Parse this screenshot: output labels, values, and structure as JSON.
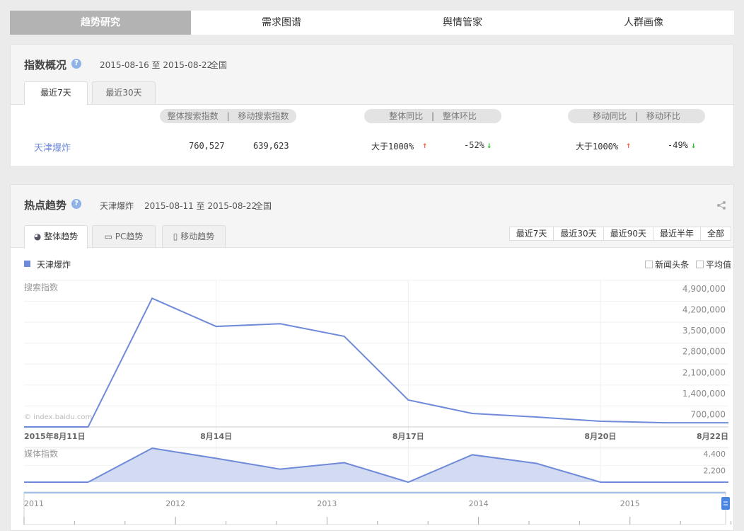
{
  "nav": {
    "tabs": [
      "趋势研究",
      "需求图谱",
      "舆情管家",
      "人群画像"
    ],
    "active": 0
  },
  "overview": {
    "title": "指数概况",
    "help": "?",
    "date_range": "2015-08-16 至 2015-08-22",
    "region": "全国",
    "tabs": [
      "最近7天",
      "最近30天"
    ],
    "headers": {
      "search": "整体搜索指数",
      "mobile_search": "移动搜索指数",
      "overall_yoy": "整体同比",
      "overall_mom": "整体环比",
      "mobile_yoy": "移动同比",
      "mobile_mom": "移动环比",
      "sep": "|"
    },
    "row": {
      "keyword": "天津爆炸",
      "search": "760,527",
      "mobile_search": "639,623",
      "overall_yoy": "大于1000%",
      "overall_mom": "-52%",
      "mobile_yoy": "大于1000%",
      "mobile_mom": "-49%"
    },
    "arrows": {
      "up": "↑",
      "down": "↓"
    },
    "colors": {
      "up": "#f06a50",
      "down": "#2fbd2f"
    }
  },
  "trend": {
    "title": "热点趋势",
    "help": "?",
    "keyword": "天津爆炸",
    "date_range": "2015-08-11 至 2015-08-22",
    "region": "全国",
    "tabs": [
      "整体趋势",
      "PC趋势",
      "移动趋势"
    ],
    "ranges": [
      "最近7天",
      "最近30天",
      "最近90天",
      "最近半年",
      "全部"
    ],
    "checkboxes": [
      "新闻头条",
      "平均值"
    ],
    "legend": "天津爆炸",
    "watermark": "© index.baidu.com"
  },
  "chart_data": [
    {
      "type": "line",
      "ylabel": "搜索指数",
      "series_color": "#6f8ad8",
      "x": [
        "2015-08-11",
        "2015-08-12",
        "2015-08-13",
        "2015-08-14",
        "2015-08-15",
        "2015-08-16",
        "2015-08-17",
        "2015-08-18",
        "2015-08-19",
        "2015-08-20",
        "2015-08-21",
        "2015-08-22"
      ],
      "series": [
        {
          "name": "天津爆炸",
          "values": [
            0,
            0,
            4300000,
            3360000,
            3450000,
            3030000,
            900000,
            450000,
            330000,
            190000,
            140000,
            140000
          ]
        }
      ],
      "ylim": [
        0,
        4900000
      ],
      "yticks": [
        "700,000",
        "1,400,000",
        "2,100,000",
        "2,800,000",
        "3,500,000",
        "4,200,000",
        "4,900,000"
      ],
      "xticks": [
        {
          "date": "2015-08-11",
          "label": "2015年8月11日"
        },
        {
          "date": "2015-08-14",
          "label": "8月14日"
        },
        {
          "date": "2015-08-17",
          "label": "8月17日"
        },
        {
          "date": "2015-08-20",
          "label": "8月20日"
        },
        {
          "date": "2015-08-22",
          "label": "8月22日"
        }
      ],
      "grid": true
    },
    {
      "type": "area",
      "ylabel": "媒体指数",
      "series_color": "#6f8ad8",
      "x": [
        "2015-08-11",
        "2015-08-12",
        "2015-08-13",
        "2015-08-14",
        "2015-08-15",
        "2015-08-16",
        "2015-08-17",
        "2015-08-18",
        "2015-08-19",
        "2015-08-20",
        "2015-08-21",
        "2015-08-22"
      ],
      "series": [
        {
          "name": "天津爆炸",
          "values": [
            0,
            0,
            4500,
            3160,
            1720,
            2580,
            0,
            3630,
            2490,
            0,
            0,
            0
          ]
        }
      ],
      "ylim": [
        0,
        4600
      ],
      "yticks": [
        "2,200",
        "4,400"
      ]
    },
    {
      "type": "navigator",
      "labels": [
        "2011",
        "2012",
        "2013",
        "2014",
        "2015"
      ]
    }
  ]
}
